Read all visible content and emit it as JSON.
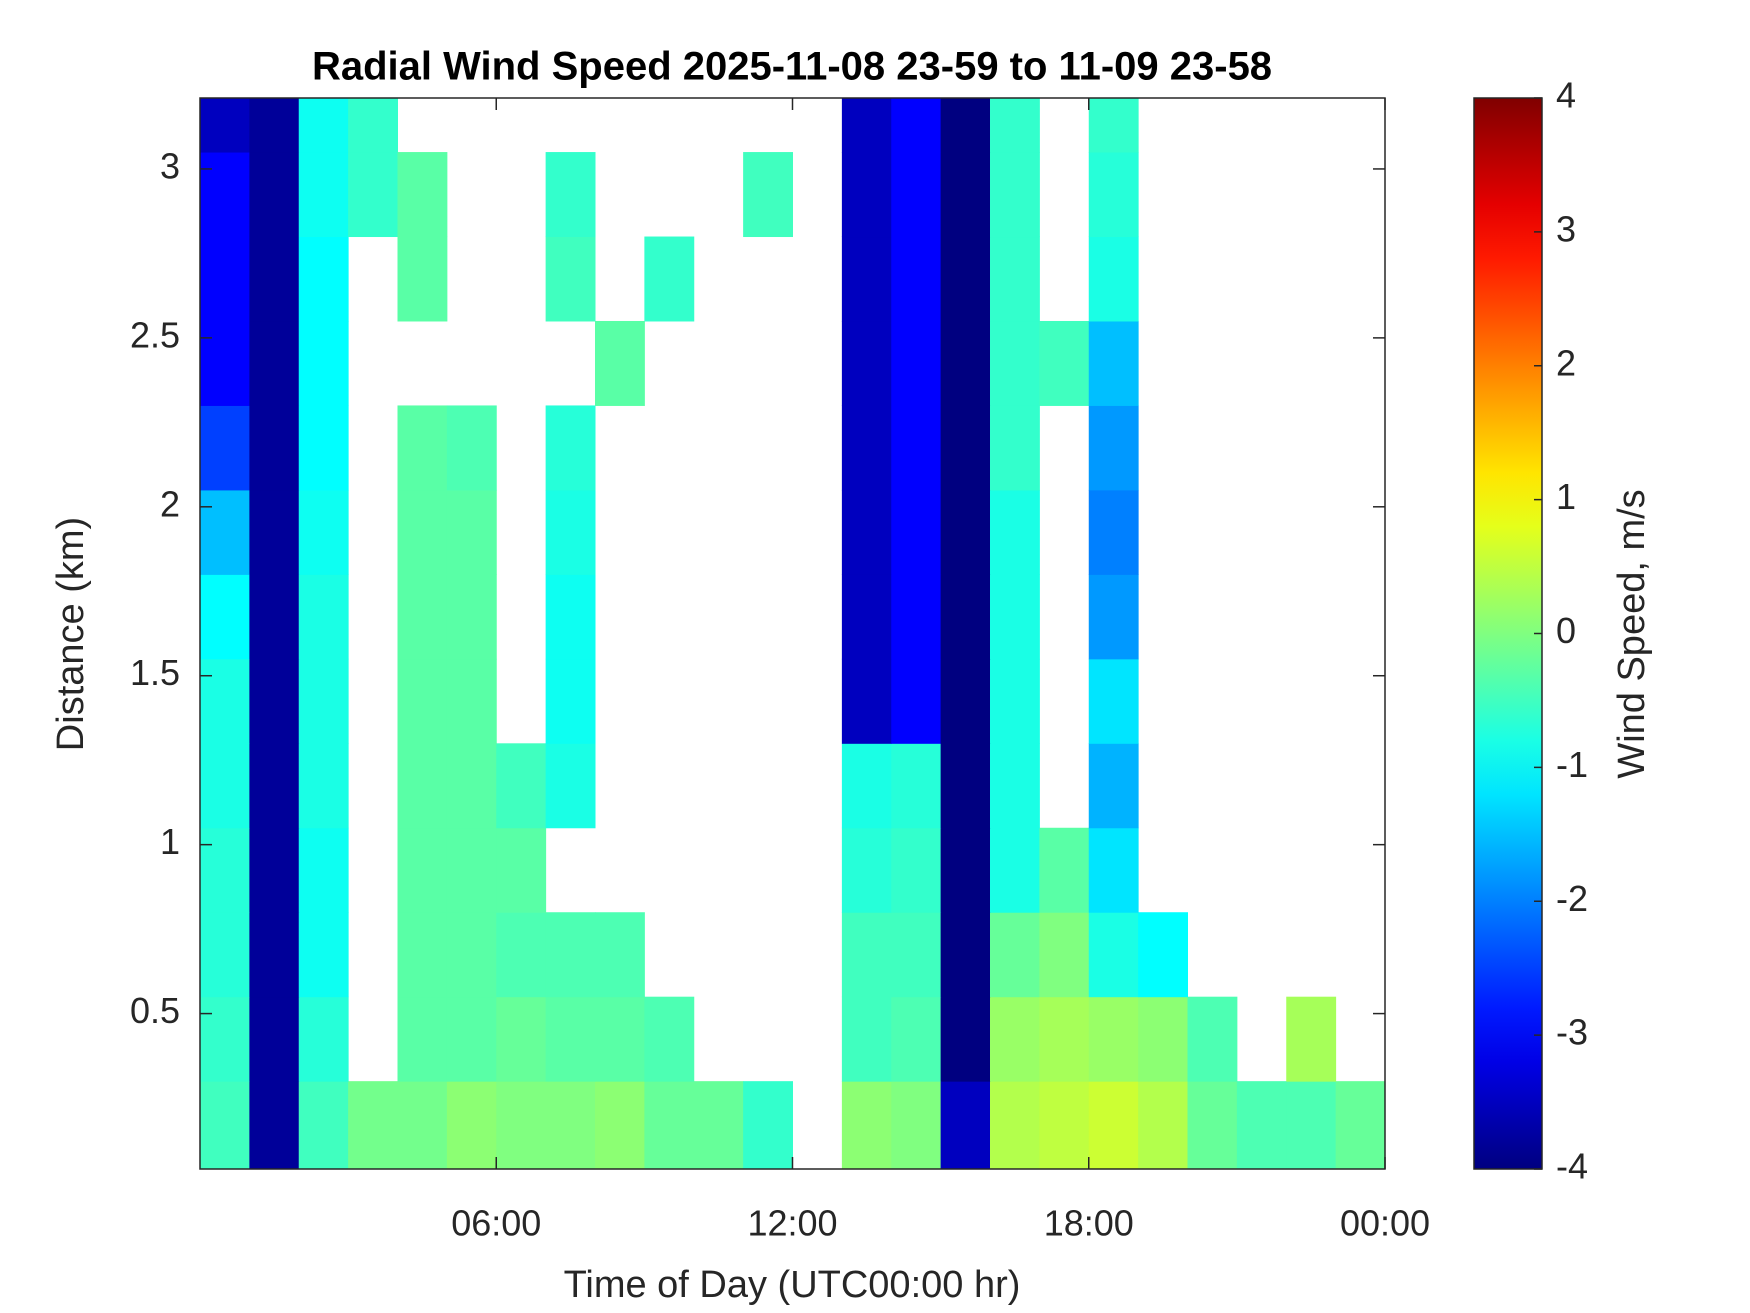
{
  "chart_data": {
    "type": "heatmap",
    "title": "Radial Wind Speed 2025-11-08 23-59 to 11-09 23-58",
    "x_label": "Time of Day (UTC00:00 hr)",
    "y_label": "Distance (km)",
    "colorbar_label": "Wind Speed, m/s",
    "colormap": "jet",
    "xlim": [
      0,
      24
    ],
    "xticks": [
      {
        "value": 6,
        "label": "06:00"
      },
      {
        "value": 12,
        "label": "12:00"
      },
      {
        "value": 18,
        "label": "18:00"
      },
      {
        "value": 24,
        "label": "00:00"
      }
    ],
    "ylim": [
      0.04,
      3.21
    ],
    "yticks": [
      0.5,
      1,
      1.5,
      2,
      2.5,
      3
    ],
    "clim": [
      -4,
      4
    ],
    "cticks": [
      -4,
      -3,
      -2,
      -1,
      0,
      1,
      2,
      3,
      4
    ],
    "x_bins": [
      0,
      1,
      2,
      3,
      4,
      5,
      6,
      7,
      8,
      9,
      10,
      11,
      12,
      13,
      14,
      15,
      16,
      17,
      18,
      19,
      20,
      21,
      22,
      23,
      24
    ],
    "y_bins": [
      0.04,
      0.3,
      0.55,
      0.8,
      1.05,
      1.3,
      1.55,
      1.8,
      2.05,
      2.3,
      2.55,
      2.8,
      3.05,
      3.21
    ],
    "values": [
      [
        -0.5,
        -3.8,
        -0.5,
        -0.1,
        -0.1,
        0.1,
        0,
        0,
        0.1,
        -0.2,
        -0.2,
        -0.6,
        null,
        0.1,
        0,
        -3.5,
        0.4,
        0.5,
        0.6,
        0.4,
        -0.2,
        -0.4,
        -0.4,
        -0.2
      ],
      [
        -0.6,
        -3.8,
        -0.7,
        null,
        -0.3,
        -0.3,
        -0.2,
        -0.3,
        -0.3,
        -0.4,
        null,
        null,
        null,
        -0.5,
        -0.4,
        -4,
        0.2,
        0.3,
        0.2,
        0.1,
        -0.4,
        null,
        0.3,
        null
      ],
      [
        -0.7,
        -3.8,
        -0.9,
        null,
        -0.3,
        -0.3,
        -0.4,
        -0.4,
        -0.4,
        null,
        null,
        null,
        null,
        -0.5,
        -0.5,
        -4,
        -0.2,
        0,
        -0.8,
        -1,
        null,
        null,
        null,
        null
      ],
      [
        -0.7,
        -3.8,
        -0.9,
        null,
        -0.3,
        -0.3,
        -0.3,
        null,
        null,
        null,
        null,
        null,
        null,
        -0.7,
        -0.6,
        -4,
        -0.8,
        -0.3,
        -1.2,
        null,
        null,
        null,
        null,
        null
      ],
      [
        -0.8,
        -3.8,
        -0.8,
        null,
        -0.3,
        -0.3,
        -0.5,
        -0.8,
        null,
        null,
        null,
        null,
        null,
        -0.8,
        -0.7,
        -4,
        -0.8,
        null,
        -1.6,
        null,
        null,
        null,
        null,
        null
      ],
      [
        -0.8,
        -3.8,
        -0.8,
        null,
        -0.3,
        -0.3,
        null,
        -0.9,
        null,
        null,
        null,
        null,
        null,
        -3.5,
        -3,
        -4,
        -0.8,
        null,
        -1.2,
        null,
        null,
        null,
        null,
        null
      ],
      [
        -1,
        -3.8,
        -0.8,
        null,
        -0.3,
        -0.3,
        null,
        -0.9,
        null,
        null,
        null,
        null,
        null,
        -3.5,
        -3,
        -4,
        -0.8,
        null,
        -1.8,
        null,
        null,
        null,
        null,
        null
      ],
      [
        -1.5,
        -3.8,
        -0.9,
        null,
        -0.3,
        -0.3,
        null,
        -0.8,
        null,
        null,
        null,
        null,
        null,
        -3.5,
        -3,
        -4,
        -0.8,
        null,
        -2,
        null,
        null,
        null,
        null,
        null
      ],
      [
        -2.5,
        -3.8,
        -1,
        null,
        -0.3,
        -0.4,
        null,
        -0.7,
        null,
        null,
        null,
        null,
        null,
        -3.5,
        -3,
        -4,
        -0.6,
        null,
        -1.8,
        null,
        null,
        null,
        null,
        null
      ],
      [
        -3,
        -3.8,
        -1,
        null,
        null,
        null,
        null,
        null,
        -0.3,
        null,
        null,
        null,
        null,
        -3.5,
        -3,
        -4,
        -0.6,
        -0.5,
        -1.5,
        null,
        null,
        null,
        null,
        null
      ],
      [
        -3,
        -3.8,
        -1,
        null,
        -0.3,
        null,
        null,
        -0.5,
        null,
        -0.6,
        null,
        null,
        null,
        -3.5,
        -3,
        -4,
        -0.6,
        null,
        -0.8,
        null,
        null,
        null,
        null,
        null
      ],
      [
        -3,
        -3.8,
        -0.9,
        -0.6,
        -0.3,
        null,
        null,
        -0.6,
        null,
        null,
        null,
        -0.5,
        null,
        -3.5,
        -3,
        -4,
        -0.6,
        null,
        -0.7,
        null,
        null,
        null,
        null,
        null
      ],
      [
        -3.5,
        -3.8,
        -0.9,
        -0.6,
        null,
        null,
        null,
        null,
        null,
        null,
        null,
        null,
        null,
        -3.5,
        -3,
        -4,
        -0.6,
        null,
        -0.6,
        null,
        null,
        null,
        null,
        null
      ]
    ]
  }
}
